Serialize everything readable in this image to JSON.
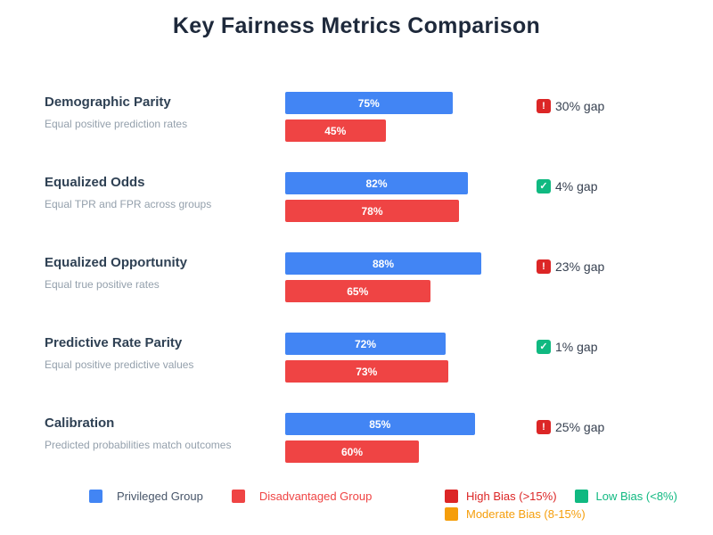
{
  "title": "Key Fairness Metrics Comparison",
  "colors": {
    "privileged_bar": "#4285f4",
    "disadvantaged_bar": "#ef4444",
    "high_bias": "#dc2626",
    "low_bias": "#10b981",
    "moderate_bias": "#f59e0b",
    "title_text": "#1e293b",
    "metric_name_text": "#2f4154",
    "metric_desc_text": "#94a0ac",
    "gap_text": "#374151"
  },
  "badge_icons": {
    "high": "!",
    "low": "✓"
  },
  "metrics": [
    {
      "name": "Demographic Parity",
      "description": "Equal positive prediction rates",
      "privileged": 75,
      "privileged_label": "75%",
      "disadvantaged": 45,
      "disadvantaged_label": "45%",
      "gap": 30,
      "gap_label": "30% gap",
      "status": "high"
    },
    {
      "name": "Equalized Odds",
      "description": "Equal TPR and FPR across groups",
      "privileged": 82,
      "privileged_label": "82%",
      "disadvantaged": 78,
      "disadvantaged_label": "78%",
      "gap": 4,
      "gap_label": "4% gap",
      "status": "low"
    },
    {
      "name": "Equalized Opportunity",
      "description": "Equal true positive rates",
      "privileged": 88,
      "privileged_label": "88%",
      "disadvantaged": 65,
      "disadvantaged_label": "65%",
      "gap": 23,
      "gap_label": "23% gap",
      "status": "high"
    },
    {
      "name": "Predictive Rate Parity",
      "description": "Equal positive predictive values",
      "privileged": 72,
      "privileged_label": "72%",
      "disadvantaged": 73,
      "disadvantaged_label": "73%",
      "gap": 1,
      "gap_label": "1% gap",
      "status": "low"
    },
    {
      "name": "Calibration",
      "description": "Predicted probabilities match outcomes",
      "privileged": 85,
      "privileged_label": "85%",
      "disadvantaged": 60,
      "disadvantaged_label": "60%",
      "gap": 25,
      "gap_label": "25% gap",
      "status": "high"
    }
  ],
  "legend": {
    "groups": [
      {
        "label": "Privileged Group",
        "swatch_color": "#4285f4",
        "text_color": "#475569"
      },
      {
        "label": "Disadvantaged Group",
        "swatch_color": "#ef4444",
        "text_color": "#ef4444"
      }
    ],
    "bias": [
      {
        "label": "High Bias (>15%)",
        "swatch_color": "#dc2626",
        "text_color": "#dc2626"
      },
      {
        "label": "Low Bias (<8%)",
        "swatch_color": "#10b981",
        "text_color": "#10b981"
      },
      {
        "label": "Moderate Bias (8-15%)",
        "swatch_color": "#f59e0b",
        "text_color": "#f59e0b"
      }
    ]
  },
  "chart_data": {
    "type": "bar",
    "orientation": "horizontal",
    "title": "Key Fairness Metrics Comparison",
    "categories": [
      "Demographic Parity",
      "Equalized Odds",
      "Equalized Opportunity",
      "Predictive Rate Parity",
      "Calibration"
    ],
    "category_descriptions": [
      "Equal positive prediction rates",
      "Equal TPR and FPR across groups",
      "Equal true positive rates",
      "Equal positive predictive values",
      "Predicted probabilities match outcomes"
    ],
    "series": [
      {
        "name": "Privileged Group",
        "color": "#4285f4",
        "values": [
          75,
          82,
          88,
          72,
          85
        ]
      },
      {
        "name": "Disadvantaged Group",
        "color": "#ef4444",
        "values": [
          45,
          78,
          65,
          73,
          60
        ]
      }
    ],
    "gap_annotations": [
      {
        "label": "30% gap",
        "status": "high"
      },
      {
        "label": "4% gap",
        "status": "low"
      },
      {
        "label": "23% gap",
        "status": "high"
      },
      {
        "label": "1% gap",
        "status": "low"
      },
      {
        "label": "25% gap",
        "status": "high"
      }
    ],
    "xlim": [
      0,
      100
    ],
    "value_format": "percent",
    "data_labels": true,
    "grid": false,
    "legend_position": "bottom",
    "legend_thresholds": [
      "High Bias (>15%)",
      "Low Bias (<8%)",
      "Moderate Bias (8-15%)"
    ]
  }
}
